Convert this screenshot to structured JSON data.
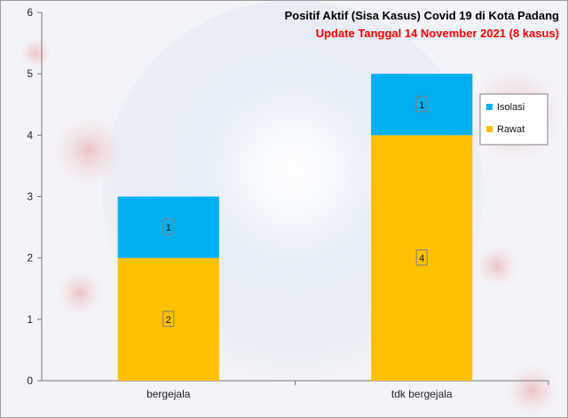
{
  "chart_data": {
    "type": "bar",
    "stacked": true,
    "title": "Positif Aktif  (Sisa Kasus) Covid 19 di Kota Padang",
    "subtitle": "Update Tanggal  14 November 2021 (8 kasus)",
    "categories": [
      "bergejala",
      "tdk bergejala"
    ],
    "series": [
      {
        "name": "Rawat",
        "values": [
          2,
          4
        ],
        "color": "#FFC000"
      },
      {
        "name": "Isolasi",
        "values": [
          1,
          1
        ],
        "color": "#00B0F0"
      }
    ],
    "legend_order": [
      "Isolasi",
      "Rawat"
    ],
    "ylim": [
      0,
      6
    ],
    "yticks": [
      0,
      1,
      2,
      3,
      4,
      5,
      6
    ],
    "xlabel": "",
    "ylabel": "",
    "grid": false,
    "legend_position": "right",
    "subtitle_color": "#FF0000"
  }
}
